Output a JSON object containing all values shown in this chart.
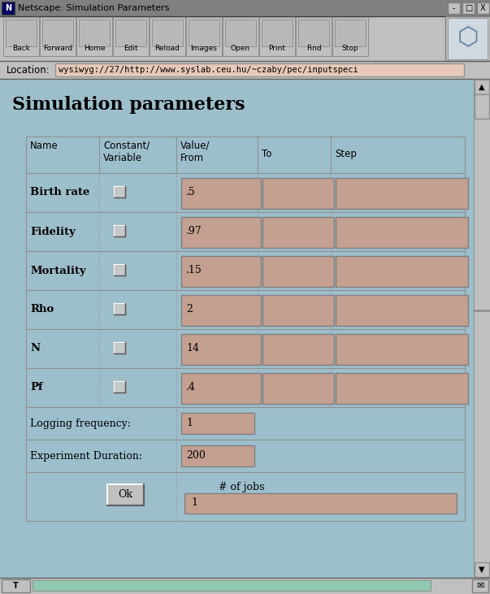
{
  "title": "Netscape: Simulation Parameters",
  "location_text": "wysiwyg://27/http://www.syslab.ceu.hu/~czaby/pec/inputspeci",
  "page_title": "Simulation parameters",
  "bg_page": "#9dbfcc",
  "bg_toolbar": "#c0c0c0",
  "bg_titlebar": "#808080",
  "bg_input": "#c4a090",
  "bg_table": "#9dbfcc",
  "bg_white": "#ffffff",
  "bg_location": "#e8c8b8",
  "rows": [
    {
      "name": "Birth rate",
      "value": ".5"
    },
    {
      "name": "Fidelity",
      "value": ".97"
    },
    {
      "name": "Mortality",
      "value": ".15"
    },
    {
      "name": "Rho",
      "value": "2"
    },
    {
      "name": "N",
      "value": "14"
    },
    {
      "name": "Pf",
      "value": ".4"
    }
  ],
  "logging_freq": "1",
  "exp_duration": "200",
  "num_jobs": "1",
  "toolbar_buttons": [
    "Back",
    "Forward",
    "Home",
    "Edit",
    "Reload",
    "Images",
    "Open",
    "Print",
    "Find",
    "Stop"
  ],
  "figw": 6.03,
  "figh": 7.31,
  "dpi": 100
}
